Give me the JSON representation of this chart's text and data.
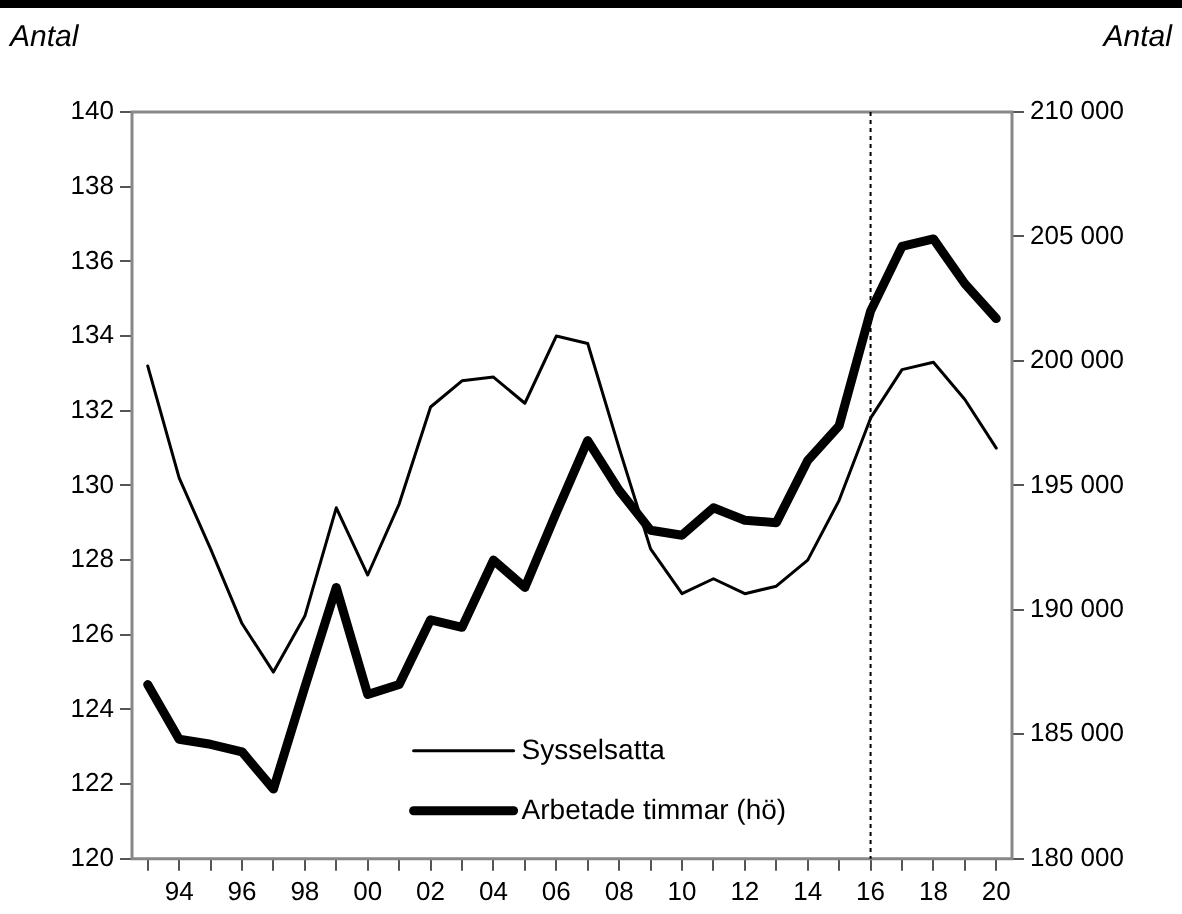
{
  "chart_data": {
    "type": "line",
    "ylabel": "Antal",
    "y2label": "Antal",
    "x": [
      1993,
      1994,
      1995,
      1996,
      1997,
      1998,
      1999,
      2000,
      2001,
      2002,
      2003,
      2004,
      2005,
      2006,
      2007,
      2008,
      2009,
      2010,
      2011,
      2012,
      2013,
      2014,
      2015,
      2016,
      2017,
      2018,
      2019,
      2020
    ],
    "series": [
      {
        "name": "Sysselsatta",
        "color": "#000000",
        "values": [
          133.2,
          130.2,
          128.3,
          126.3,
          125.0,
          126.5,
          129.4,
          127.6,
          129.5,
          132.1,
          132.8,
          132.9,
          132.2,
          134.0,
          133.8,
          131.0,
          128.3,
          127.1,
          127.5,
          127.1,
          127.3,
          128.0,
          129.6,
          131.8,
          133.1,
          133.3,
          132.3,
          131.0
        ]
      },
      {
        "name": "Arbetade timmar (hö)",
        "color": "#000000",
        "axis": "y2",
        "values": [
          187000,
          184800,
          184600,
          184300,
          182800,
          186900,
          190900,
          186600,
          187000,
          189600,
          189300,
          192000,
          190900,
          193900,
          196800,
          194800,
          193200,
          193000,
          194100,
          193600,
          193500,
          196000,
          197400,
          202000,
          204600,
          204900,
          203100,
          201700
        ]
      }
    ],
    "xlim": [
      1992.5,
      2020.5
    ],
    "xticks": [
      {
        "value": 1993,
        "label": null
      },
      {
        "value": 1994,
        "label": "94"
      },
      {
        "value": 1995,
        "label": null
      },
      {
        "value": 1996,
        "label": "96"
      },
      {
        "value": 1997,
        "label": null
      },
      {
        "value": 1998,
        "label": "98"
      },
      {
        "value": 1999,
        "label": null
      },
      {
        "value": 2000,
        "label": "00"
      },
      {
        "value": 2001,
        "label": null
      },
      {
        "value": 2002,
        "label": "02"
      },
      {
        "value": 2003,
        "label": null
      },
      {
        "value": 2004,
        "label": "04"
      },
      {
        "value": 2005,
        "label": null
      },
      {
        "value": 2006,
        "label": "06"
      },
      {
        "value": 2007,
        "label": null
      },
      {
        "value": 2008,
        "label": "08"
      },
      {
        "value": 2009,
        "label": null
      },
      {
        "value": 2010,
        "label": "10"
      },
      {
        "value": 2011,
        "label": null
      },
      {
        "value": 2012,
        "label": "12"
      },
      {
        "value": 2013,
        "label": null
      },
      {
        "value": 2014,
        "label": "14"
      },
      {
        "value": 2015,
        "label": null
      },
      {
        "value": 2016,
        "label": "16"
      },
      {
        "value": 2017,
        "label": null
      },
      {
        "value": 2018,
        "label": "18"
      },
      {
        "value": 2019,
        "label": null
      },
      {
        "value": 2020,
        "label": "20"
      }
    ],
    "ylim": [
      120,
      140
    ],
    "yticks": [
      120,
      122,
      124,
      126,
      128,
      130,
      132,
      134,
      136,
      138,
      140
    ],
    "y2lim": [
      180000,
      210000
    ],
    "y2ticks": [
      {
        "value": 180000,
        "label": "180 000"
      },
      {
        "value": 185000,
        "label": "185 000"
      },
      {
        "value": 190000,
        "label": "190 000"
      },
      {
        "value": 195000,
        "label": "195 000"
      },
      {
        "value": 200000,
        "label": "200 000"
      },
      {
        "value": 205000,
        "label": "205 000"
      },
      {
        "value": 210000,
        "label": "210 000"
      }
    ],
    "ref_lines": [
      {
        "axis": "x",
        "value": 2016,
        "color": "#000000",
        "line_style": "dotted"
      }
    ],
    "legend": "bottom",
    "grid": false,
    "marker": "none",
    "line_style": "solid"
  }
}
